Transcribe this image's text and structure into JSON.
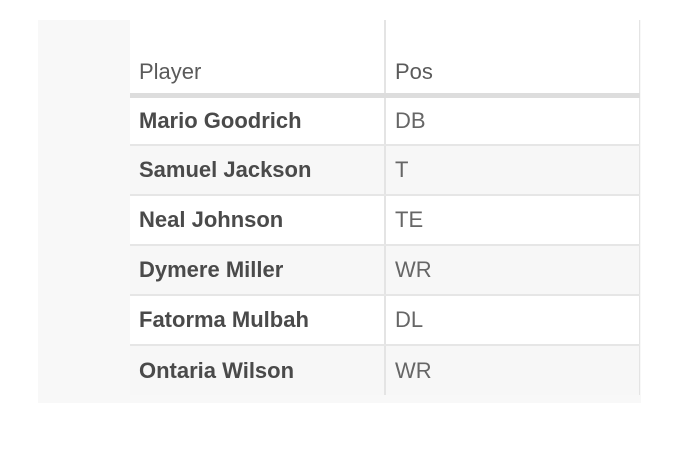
{
  "table": {
    "headers": [
      "Player",
      "Pos"
    ],
    "rows": [
      {
        "player": "Mario Goodrich",
        "pos": "DB"
      },
      {
        "player": "Samuel Jackson",
        "pos": "T"
      },
      {
        "player": "Neal Johnson",
        "pos": "TE"
      },
      {
        "player": "Dymere Miller",
        "pos": "WR"
      },
      {
        "player": "Fatorma Mulbah",
        "pos": "DL"
      },
      {
        "player": "Ontaria Wilson",
        "pos": "WR"
      }
    ]
  }
}
